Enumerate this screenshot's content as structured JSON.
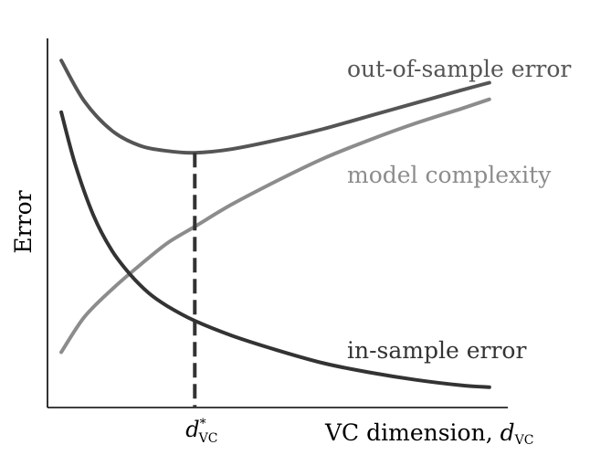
{
  "chart_data": {
    "type": "line",
    "title": "",
    "ylabel": "Error",
    "xlabel": "VC dimension, ",
    "xlabel_symbol": "d",
    "xlabel_subscript": "VC",
    "optimum_label_symbol": "d",
    "optimum_label_sup": "*",
    "optimum_label_subscript": "VC",
    "grid": false,
    "ticks": false,
    "xlim": [
      0,
      1
    ],
    "ylim": [
      0,
      1
    ],
    "optimum_x": 0.32,
    "series": [
      {
        "name": "out-of-sample error",
        "color": "#555555",
        "x": [
          0.03,
          0.08,
          0.14,
          0.2,
          0.26,
          0.32,
          0.4,
          0.5,
          0.6,
          0.7,
          0.8,
          0.9,
          0.96
        ],
        "y": [
          0.94,
          0.83,
          0.75,
          0.71,
          0.695,
          0.69,
          0.7,
          0.725,
          0.755,
          0.79,
          0.825,
          0.86,
          0.88
        ]
      },
      {
        "name": "model complexity",
        "color": "#8c8c8c",
        "x": [
          0.03,
          0.08,
          0.14,
          0.2,
          0.26,
          0.32,
          0.4,
          0.5,
          0.6,
          0.7,
          0.8,
          0.9,
          0.96
        ],
        "y": [
          0.15,
          0.245,
          0.32,
          0.385,
          0.445,
          0.49,
          0.55,
          0.615,
          0.675,
          0.725,
          0.77,
          0.81,
          0.835
        ]
      },
      {
        "name": "in-sample error",
        "color": "#333333",
        "x": [
          0.03,
          0.06,
          0.1,
          0.14,
          0.18,
          0.22,
          0.26,
          0.32,
          0.4,
          0.5,
          0.6,
          0.7,
          0.8,
          0.9,
          0.96
        ],
        "y": [
          0.8,
          0.66,
          0.52,
          0.425,
          0.36,
          0.31,
          0.275,
          0.235,
          0.195,
          0.155,
          0.12,
          0.095,
          0.075,
          0.06,
          0.055
        ]
      }
    ]
  }
}
